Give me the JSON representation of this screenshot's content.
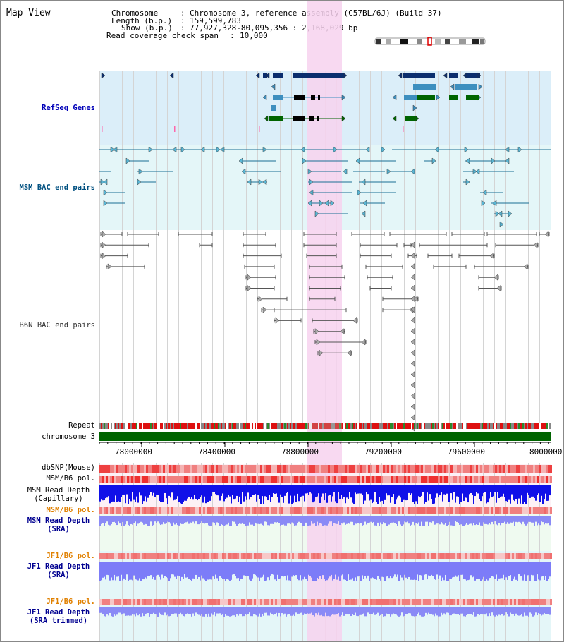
{
  "app": {
    "title": "Map View"
  },
  "info": {
    "chromosome_key": "Chromosome",
    "chromosome_val": "Chromosome 3, reference assembly (C57BL/6J) (Build 37)",
    "length_key": "Length (b.p.)",
    "length_val": "159,599,783",
    "show_key": "Show (b.p.)",
    "show_val": "77,927,328-80,095,356 : 2,168,029 bp",
    "coverage_key": "Read coverage check span",
    "coverage_val": "10,000"
  },
  "tracks": {
    "refseq": "RefSeq Genes",
    "msm_bac": "MSM BAC end pairs",
    "b6n_bac": "B6N BAC end pairs",
    "repeat": "Repeat",
    "chromosome": "chromosome 3",
    "dbsnp": "dbSNP(Mouse)",
    "msm_b6_pol_1": "MSM/B6 pol.",
    "msm_depth_cap_1": "MSM Read Depth",
    "msm_depth_cap_2": "(Capillary)",
    "msm_b6_pol_2": "MSM/B6 pol.",
    "msm_depth_sra_1": "MSM Read Depth",
    "msm_depth_sra_2": "(SRA)",
    "jf1_pol_1": "JF1/B6 pol.",
    "jf1_depth_1": "JF1 Read Depth",
    "jf1_depth_2": "(SRA)",
    "jf1_pol_2": "JF1/B6 pol.",
    "jf1_trim_1": "JF1 Read Depth",
    "jf1_trim_2": "(SRA trimmed)"
  },
  "axis": {
    "ticks": [
      "78000000",
      "78400000",
      "78800000",
      "79200000",
      "79600000",
      "80000000"
    ]
  },
  "colors": {
    "refseq_bg": "#dbeef9",
    "msm_bg": "#e4f6f8",
    "highlight": "#f7d2ef",
    "gene_dark": "#0b2e6e",
    "gene_mid": "#3d8fbf",
    "gene_green": "#006400",
    "bac_teal": "#1a6f93",
    "bac_gray": "#555555",
    "chromosome_bar": "#006400",
    "depth_blue": "#1010e8",
    "depth_light": "#7c7cf8"
  }
}
